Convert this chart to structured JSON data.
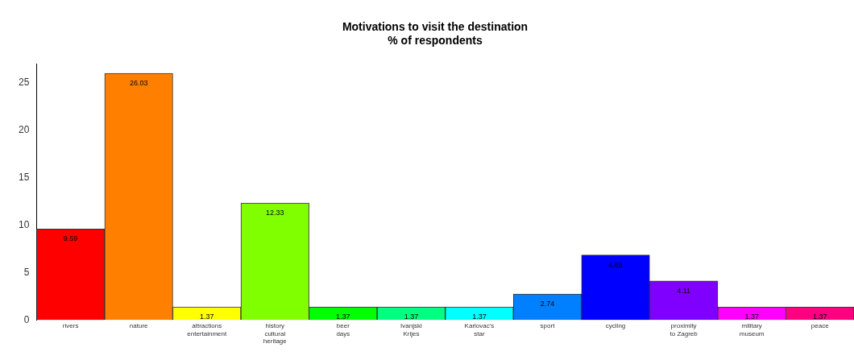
{
  "chart_data": {
    "type": "bar",
    "title": "Motivations to visit the destination",
    "subtitle": "% of respondents",
    "categories": [
      "rivers",
      "nature",
      "attractions\nentertainment",
      "history\ncultural\nheritage",
      "beer\ndays",
      "Ivanjski\nKrijes",
      "Karlovac's\nstar",
      "sport",
      "cycling",
      "proximity\nto Zagreb",
      "military\nmuseum",
      "peace"
    ],
    "values": [
      9.59,
      26.03,
      1.37,
      12.33,
      1.37,
      1.37,
      1.37,
      2.74,
      6.85,
      4.11,
      1.37,
      1.37
    ],
    "colors": [
      "#ff0000",
      "#ff8000",
      "#ffff00",
      "#80ff00",
      "#00ff00",
      "#00ff80",
      "#00ffff",
      "#0080ff",
      "#0000ff",
      "#8000ff",
      "#ff00ff",
      "#ff0080"
    ],
    "ylim": [
      0,
      27
    ],
    "yticks": [
      0,
      5,
      10,
      15,
      20,
      25
    ],
    "grid": false,
    "legend": false,
    "data_labels": true
  }
}
